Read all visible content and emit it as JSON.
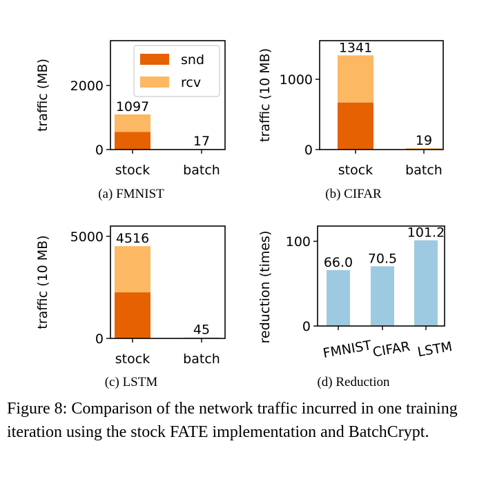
{
  "colors": {
    "snd": "#e66101",
    "rcv": "#fdb863",
    "reduction": "#9ecae1"
  },
  "chart_data": [
    {
      "type": "bar",
      "stacked": true,
      "subtitle": "(a) FMNIST",
      "ylabel": "traffic (MB)",
      "categories": [
        "stock",
        "batch"
      ],
      "series": [
        {
          "name": "snd",
          "values": [
            548,
            8
          ]
        },
        {
          "name": "rcv",
          "values": [
            549,
            9
          ]
        }
      ],
      "totals": [
        "1097",
        "17"
      ],
      "ylim": [
        0,
        3400
      ],
      "yticks": [
        0,
        2000
      ],
      "legend": "top-right"
    },
    {
      "type": "bar",
      "stacked": true,
      "subtitle": "(b) CIFAR",
      "ylabel": "traffic (10 MB)",
      "categories": [
        "stock",
        "batch"
      ],
      "series": [
        {
          "name": "snd",
          "values": [
            670,
            9
          ]
        },
        {
          "name": "rcv",
          "values": [
            671,
            10
          ]
        }
      ],
      "totals": [
        "1341",
        "19"
      ],
      "ylim": [
        0,
        1550
      ],
      "yticks": [
        0,
        1000
      ]
    },
    {
      "type": "bar",
      "stacked": true,
      "subtitle": "(c) LSTM",
      "ylabel": "traffic (10 MB)",
      "categories": [
        "stock",
        "batch"
      ],
      "series": [
        {
          "name": "snd",
          "values": [
            2258,
            22
          ]
        },
        {
          "name": "rcv",
          "values": [
            2258,
            23
          ]
        }
      ],
      "totals": [
        "4516",
        "45"
      ],
      "ylim": [
        0,
        5500
      ],
      "yticks": [
        0,
        5000
      ]
    },
    {
      "type": "bar",
      "subtitle": "(d) Reduction",
      "ylabel": "reduction (times)",
      "categories": [
        "FMNIST",
        "CIFAR",
        "LSTM"
      ],
      "values": [
        66.0,
        70.5,
        101.2
      ],
      "labels": [
        "66.0",
        "70.5",
        "101.2"
      ],
      "ylim": [
        0,
        118
      ],
      "yticks": [
        0,
        100
      ]
    }
  ],
  "caption": "Figure 8: Comparison of the network traffic incurred in one training iteration using the stock FATE implementation and BatchCrypt."
}
